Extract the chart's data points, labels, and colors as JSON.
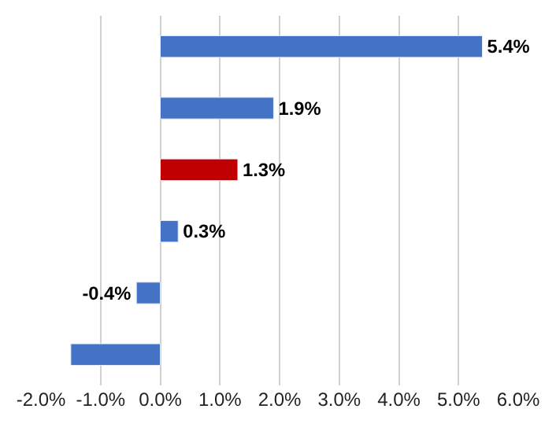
{
  "chart_data": {
    "type": "bar",
    "orientation": "horizontal",
    "categories": [
      null,
      null,
      null,
      null,
      null,
      null
    ],
    "values": [
      5.4,
      1.9,
      1.3,
      0.3,
      -0.4,
      -1.5
    ],
    "colors": [
      "#4472c4",
      "#4472c4",
      "#c00000",
      "#4472c4",
      "#4472c4",
      "#4472c4"
    ],
    "value_labels": [
      "5.4%",
      "1.9%",
      "1.3%",
      "0.3%",
      "-0.4%",
      null
    ],
    "xlim": [
      -2,
      6
    ],
    "xticks": [
      {
        "value": -2,
        "label": "-2.0%"
      },
      {
        "value": -1,
        "label": "-1.0%"
      },
      {
        "value": 0,
        "label": "0.0%"
      },
      {
        "value": 1,
        "label": "1.0%"
      },
      {
        "value": 2,
        "label": "2.0%"
      },
      {
        "value": 3,
        "label": "3.0%"
      },
      {
        "value": 4,
        "label": "4.0%"
      },
      {
        "value": 5,
        "label": "5.0%"
      },
      {
        "value": 6,
        "label": "6.0%"
      }
    ],
    "grid": "x",
    "legend": false
  }
}
